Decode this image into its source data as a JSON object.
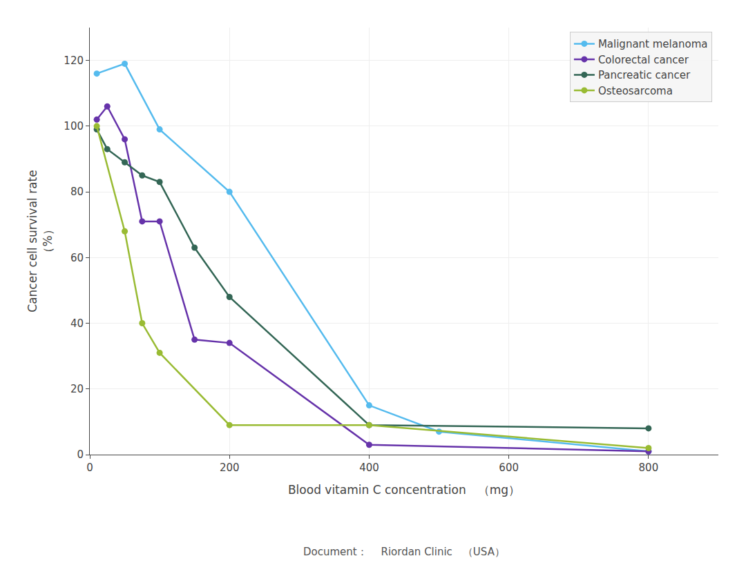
{
  "chart_data": {
    "type": "line",
    "xlabel": "Blood vitamin C concentration　（mg）",
    "ylabel": "Cancer cell survival rate\n（%）",
    "annotations": [
      "Document：　 Riordan Clinic　（USA）"
    ],
    "xlim": [
      0,
      900
    ],
    "ylim": [
      0,
      130
    ],
    "xticks": [
      0,
      200,
      400,
      600,
      800
    ],
    "yticks": [
      0,
      20,
      40,
      60,
      80,
      100,
      120
    ],
    "grid": true,
    "legend": "upper right",
    "marker": "circle",
    "line_style": "solid",
    "series": [
      {
        "name": "Malignant melanoma",
        "color": "#55BBEE",
        "x": [
          10,
          50,
          100,
          200,
          400,
          500,
          800
        ],
        "values": [
          116,
          119,
          99,
          80,
          15,
          7,
          1
        ]
      },
      {
        "name": "Colorectal cancer",
        "color": "#6633AA",
        "x": [
          10,
          25,
          50,
          75,
          100,
          150,
          200,
          400,
          800
        ],
        "values": [
          102,
          106,
          96,
          71,
          71,
          35,
          34,
          3,
          1
        ]
      },
      {
        "name": "Pancreatic cancer",
        "color": "#336655",
        "x": [
          10,
          25,
          50,
          75,
          100,
          150,
          200,
          400,
          800
        ],
        "values": [
          99,
          93,
          89,
          85,
          83,
          63,
          48,
          9,
          8
        ]
      },
      {
        "name": "Osteosarcoma",
        "color": "#99BB33",
        "x": [
          10,
          50,
          75,
          100,
          200,
          400,
          800
        ],
        "values": [
          100,
          68,
          40,
          31,
          9,
          9,
          2
        ]
      }
    ]
  }
}
